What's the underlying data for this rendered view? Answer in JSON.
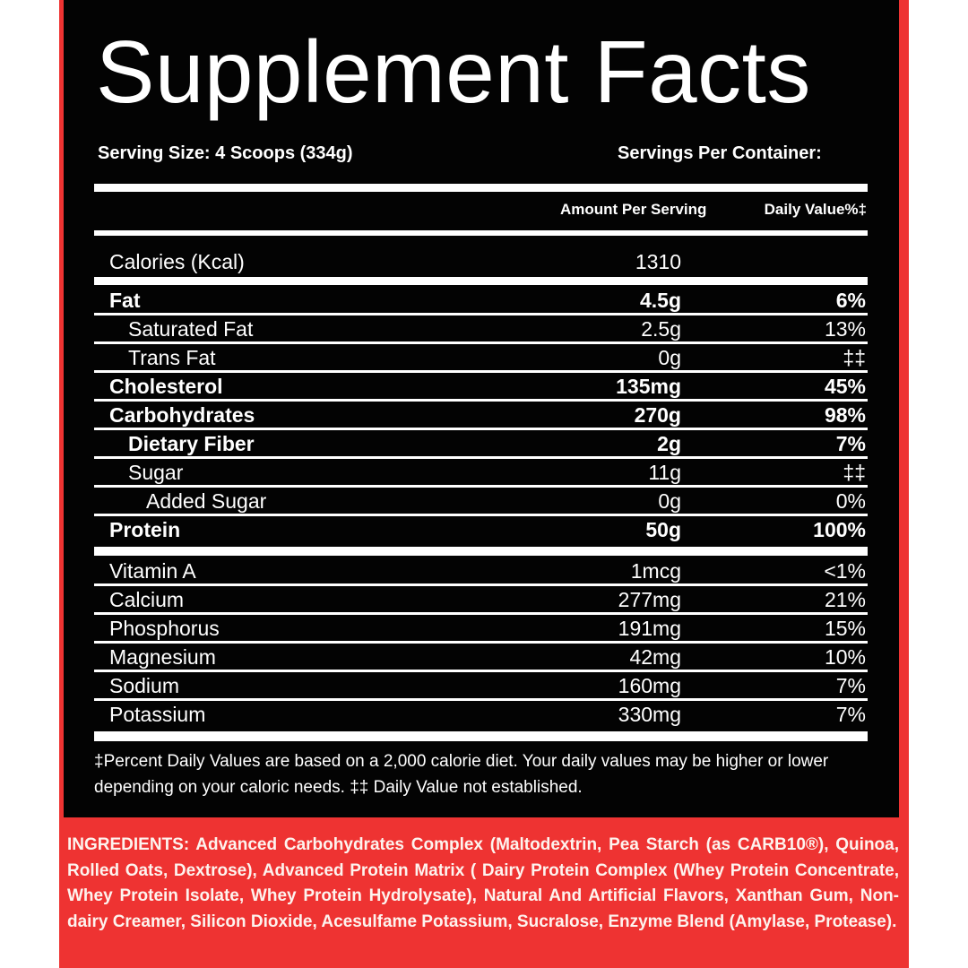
{
  "title": "Supplement Facts",
  "serving_size": "Serving Size: 4 Scoops (334g)",
  "servings_per_container": "Servings Per Container:",
  "headers": {
    "amount": "Amount Per Serving",
    "dv": "Daily Value%‡"
  },
  "calories": {
    "label": "Calories (Kcal)",
    "value": "1310"
  },
  "macros": [
    {
      "name": "Fat",
      "amount": "4.5g",
      "dv": "6%"
    },
    {
      "name": "Saturated Fat",
      "amount": "2.5g",
      "dv": "13%"
    },
    {
      "name": "Trans Fat",
      "amount": "0g",
      "dv": "‡‡"
    },
    {
      "name": "Cholesterol",
      "amount": "135mg",
      "dv": "45%"
    },
    {
      "name": "Carbohydrates",
      "amount": "270g",
      "dv": "98%"
    },
    {
      "name": "Dietary Fiber",
      "amount": "2g",
      "dv": "7%"
    },
    {
      "name": "Sugar",
      "amount": "11g",
      "dv": "‡‡"
    },
    {
      "name": "Added Sugar",
      "amount": "0g",
      "dv": "0%"
    },
    {
      "name": "Protein",
      "amount": "50g",
      "dv": "100%"
    }
  ],
  "micros": [
    {
      "name": "Vitamin A",
      "amount": "1mcg",
      "dv": "<1%"
    },
    {
      "name": "Calcium",
      "amount": "277mg",
      "dv": "21%"
    },
    {
      "name": "Phosphorus",
      "amount": "191mg",
      "dv": "15%"
    },
    {
      "name": "Magnesium",
      "amount": "42mg",
      "dv": "10%"
    },
    {
      "name": "Sodium",
      "amount": "160mg",
      "dv": "7%"
    },
    {
      "name": "Potassium",
      "amount": "330mg",
      "dv": "7%"
    }
  ],
  "footnote": "‡Percent Daily Values are based on a 2,000 calorie diet. Your daily values may be higher or lower depending on your caloric needs. ‡‡ Daily Value not established.",
  "ingredients": {
    "label": "INGREDIENTS:",
    "text": "Advanced Carbohydrates Complex (Maltodextrin, Pea Starch (as CARB10®), Quinoa, Rolled Oats, Dextrose), Advanced Protein Matrix ( Dairy Protein Complex (Whey Protein Concentrate, Whey Protein Isolate, Whey Protein Hydrolysate), Natural And Artificial Flavors, Xanthan Gum, Non-dairy Creamer, Silicon Dioxide, Acesulfame Potassium, Sucralose, Enzyme Blend (Amylase, Protease)."
  },
  "colors": {
    "panel": "#030303",
    "accent": "#ee3332",
    "text": "#ffffff"
  }
}
